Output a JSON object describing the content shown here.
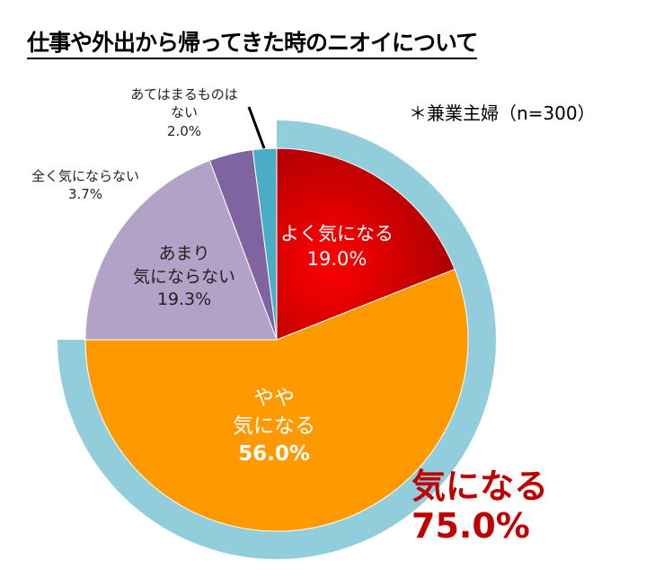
{
  "chart_data": {
    "type": "pie",
    "title": "仕事や外出から帰ってきた時のニオイについて",
    "note": "＊兼業主婦（n=300）",
    "slices": [
      {
        "label": "よく気になる",
        "value": 19.0,
        "value_label": "19.0%",
        "color": "#e00000"
      },
      {
        "label": "やや気になる",
        "label_lines": [
          "やや",
          "気になる"
        ],
        "value": 56.0,
        "value_label": "56.0%",
        "color": "#ff9900"
      },
      {
        "label": "あまり気にならない",
        "label_lines": [
          "あまり",
          "気にならない"
        ],
        "value": 19.3,
        "value_label": "19.3%",
        "color": "#b3a2c7"
      },
      {
        "label": "全く気にならない",
        "value": 3.7,
        "value_label": "3.7%",
        "color": "#8064a2"
      },
      {
        "label": "あてはまるものはない",
        "label_lines": [
          "あてはまるものは",
          "ない"
        ],
        "value": 2.0,
        "value_label": "2.0%",
        "color": "#4bacc6"
      }
    ],
    "summary": {
      "label": "気になる",
      "value": 75.0,
      "value_label": "75.0%",
      "ring_color": "#92cddc"
    }
  }
}
